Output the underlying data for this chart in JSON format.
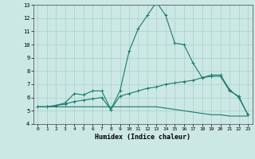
{
  "xlabel": "Humidex (Indice chaleur)",
  "xlim": [
    -0.5,
    23.5
  ],
  "ylim": [
    4,
    13
  ],
  "yticks": [
    4,
    5,
    6,
    7,
    8,
    9,
    10,
    11,
    12,
    13
  ],
  "xticks": [
    0,
    1,
    2,
    3,
    4,
    5,
    6,
    7,
    8,
    9,
    10,
    11,
    12,
    13,
    14,
    15,
    16,
    17,
    18,
    19,
    20,
    21,
    22,
    23
  ],
  "background_color": "#cce8e4",
  "line_color": "#1a7a6e",
  "grid_color": "#a8cfc9",
  "line1_x": [
    0,
    1,
    2,
    3,
    4,
    5,
    6,
    7,
    8,
    9,
    10,
    11,
    12,
    13,
    14,
    15,
    16,
    17,
    18,
    19,
    20,
    21,
    22,
    23
  ],
  "line1_y": [
    5.3,
    5.3,
    5.3,
    5.3,
    5.3,
    5.3,
    5.3,
    5.3,
    5.3,
    5.3,
    5.3,
    5.3,
    5.3,
    5.3,
    5.2,
    5.1,
    5.0,
    4.9,
    4.8,
    4.7,
    4.7,
    4.6,
    4.6,
    4.6
  ],
  "line2_x": [
    0,
    1,
    2,
    3,
    4,
    5,
    6,
    7,
    8,
    9,
    10,
    11,
    12,
    13,
    14,
    15,
    16,
    17,
    18,
    19,
    20,
    21,
    22,
    23
  ],
  "line2_y": [
    5.3,
    5.3,
    5.4,
    5.5,
    5.7,
    5.8,
    5.9,
    6.0,
    5.1,
    6.1,
    6.3,
    6.5,
    6.7,
    6.8,
    7.0,
    7.1,
    7.2,
    7.3,
    7.5,
    7.6,
    7.6,
    6.5,
    6.1,
    4.7
  ],
  "line3_x": [
    0,
    1,
    2,
    3,
    4,
    5,
    6,
    7,
    8,
    9,
    10,
    11,
    12,
    13,
    14,
    15,
    16,
    17,
    18,
    19,
    20,
    21,
    22,
    23
  ],
  "line3_y": [
    5.3,
    5.3,
    5.4,
    5.6,
    6.3,
    6.2,
    6.5,
    6.5,
    5.1,
    6.5,
    9.5,
    11.2,
    12.2,
    13.2,
    12.2,
    10.1,
    10.0,
    8.6,
    7.5,
    7.7,
    7.7,
    6.6,
    6.0,
    4.7
  ]
}
